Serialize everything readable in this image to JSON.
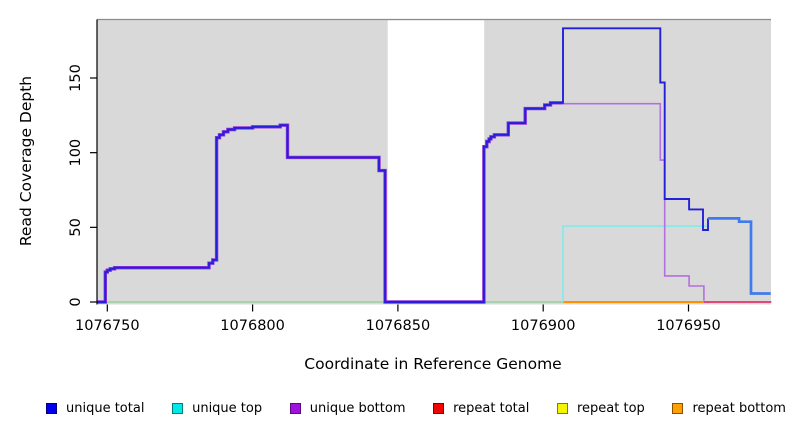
{
  "chart_data": {
    "type": "line",
    "title": "",
    "xlabel": "Coordinate in Reference Genome",
    "ylabel": "Read Coverage Depth",
    "x_ticks": [
      1076750,
      1076800,
      1076850,
      1076900,
      1076950
    ],
    "y_ticks": [
      0,
      50,
      100,
      150
    ],
    "xlim": [
      1076746.5,
      1076978.5
    ],
    "ylim": [
      0,
      190
    ],
    "grid": false,
    "panel_bg": "#d9d9d9",
    "panel_top_border": "#8c8c8c",
    "axis_color": "#000000",
    "masked_region": {
      "x_start": 1076846.5,
      "x_end": 1076879.7,
      "color": "#ffffff"
    },
    "draw": [
      {
        "name": "baseline-green",
        "color": "#96d0a0",
        "width": 1.6,
        "points": [
          [
            1076746.5,
            0
          ],
          [
            1076906.8,
            0
          ]
        ]
      },
      {
        "name": "repeat-bottom",
        "color": "#ff9100",
        "width": 2,
        "points": [
          [
            1076906.8,
            0
          ],
          [
            1076955.3,
            0
          ]
        ]
      },
      {
        "name": "repeat-total",
        "color": "#e04878",
        "width": 2,
        "points": [
          [
            1076955.3,
            0
          ],
          [
            1076978.5,
            0
          ]
        ]
      },
      {
        "name": "unique-top",
        "color": "#84e9e9",
        "width": 1.6,
        "points": [
          [
            1076906.8,
            0
          ],
          [
            1076906.8,
            50.8
          ],
          [
            1076956.7,
            50.8
          ],
          [
            1076956.7,
            56
          ],
          [
            1076967.4,
            56
          ],
          [
            1076967.4,
            53.8
          ],
          [
            1076971.5,
            53.8
          ],
          [
            1076971.5,
            5.7
          ],
          [
            1076978.3,
            5.7
          ]
        ]
      },
      {
        "name": "unique-bottom",
        "color": "#b46fe0",
        "width": 1.6,
        "points": [
          [
            1076906.8,
            132.8
          ],
          [
            1076940.3,
            132.8
          ],
          [
            1076940.3,
            95
          ],
          [
            1076941.8,
            95
          ],
          [
            1076941.8,
            17.5
          ],
          [
            1076950.2,
            17.5
          ],
          [
            1076950.2,
            10.7
          ],
          [
            1076955.3,
            10.7
          ],
          [
            1076955.3,
            0.8
          ]
        ]
      },
      {
        "name": "unique-bottom-underlay",
        "color": "#8f35dd",
        "width": 3.4,
        "points": [
          [
            1076746.5,
            0
          ],
          [
            1076749.3,
            0
          ],
          [
            1076749.3,
            20
          ],
          [
            1076750,
            20
          ],
          [
            1076750,
            21.3
          ],
          [
            1076751,
            21.3
          ],
          [
            1076751,
            22.2
          ],
          [
            1076752.5,
            22.2
          ],
          [
            1076752.5,
            23
          ],
          [
            1076785,
            23
          ],
          [
            1076785,
            26
          ],
          [
            1076786.3,
            26
          ],
          [
            1076786.3,
            28.2
          ],
          [
            1076787.6,
            28.2
          ],
          [
            1076787.6,
            110
          ],
          [
            1076788.6,
            110
          ],
          [
            1076788.6,
            112
          ],
          [
            1076790,
            112
          ],
          [
            1076790,
            114
          ],
          [
            1076791.5,
            114
          ],
          [
            1076791.5,
            115.5
          ],
          [
            1076793.8,
            115.5
          ],
          [
            1076793.8,
            116.6
          ],
          [
            1076800,
            116.6
          ],
          [
            1076800,
            117.3
          ],
          [
            1076809.5,
            117.3
          ],
          [
            1076809.5,
            118.4
          ],
          [
            1076812,
            118.4
          ],
          [
            1076812,
            96.8
          ],
          [
            1076843.5,
            96.8
          ],
          [
            1076843.5,
            88
          ],
          [
            1076845.6,
            88
          ],
          [
            1076845.6,
            0
          ],
          [
            1076879.6,
            0
          ],
          [
            1076879.6,
            104
          ],
          [
            1076880.6,
            104
          ],
          [
            1076880.6,
            107.5
          ],
          [
            1076881.4,
            107.5
          ],
          [
            1076881.4,
            109.2
          ],
          [
            1076882,
            109.2
          ],
          [
            1076882,
            110.6
          ],
          [
            1076883.2,
            110.6
          ],
          [
            1076883.2,
            112
          ],
          [
            1076888,
            112
          ],
          [
            1076888,
            119.8
          ],
          [
            1076893.8,
            119.8
          ],
          [
            1076893.8,
            129.5
          ],
          [
            1076900.5,
            129.5
          ],
          [
            1076900.5,
            132
          ],
          [
            1076902.5,
            132
          ],
          [
            1076902.5,
            133.4
          ],
          [
            1076906.8,
            133.4
          ]
        ]
      },
      {
        "name": "unique-total",
        "color": "#2420d8",
        "width": 1.9,
        "points": [
          [
            1076746.5,
            0
          ],
          [
            1076749.3,
            0
          ],
          [
            1076749.3,
            20
          ],
          [
            1076750,
            20
          ],
          [
            1076750,
            21.3
          ],
          [
            1076751,
            21.3
          ],
          [
            1076751,
            22.2
          ],
          [
            1076752.5,
            22.2
          ],
          [
            1076752.5,
            23
          ],
          [
            1076785,
            23
          ],
          [
            1076785,
            26
          ],
          [
            1076786.3,
            26
          ],
          [
            1076786.3,
            28.2
          ],
          [
            1076787.6,
            28.2
          ],
          [
            1076787.6,
            110
          ],
          [
            1076788.6,
            110
          ],
          [
            1076788.6,
            112
          ],
          [
            1076790,
            112
          ],
          [
            1076790,
            114
          ],
          [
            1076791.5,
            114
          ],
          [
            1076791.5,
            115.5
          ],
          [
            1076793.8,
            115.5
          ],
          [
            1076793.8,
            116.6
          ],
          [
            1076800,
            116.6
          ],
          [
            1076800,
            117.3
          ],
          [
            1076809.5,
            117.3
          ],
          [
            1076809.5,
            118.4
          ],
          [
            1076812,
            118.4
          ],
          [
            1076812,
            96.8
          ],
          [
            1076843.5,
            96.8
          ],
          [
            1076843.5,
            88
          ],
          [
            1076845.6,
            88
          ],
          [
            1076845.6,
            0
          ],
          [
            1076879.6,
            0
          ],
          [
            1076879.6,
            104
          ],
          [
            1076880.6,
            104
          ],
          [
            1076880.6,
            107.5
          ],
          [
            1076881.4,
            107.5
          ],
          [
            1076881.4,
            109.2
          ],
          [
            1076882,
            109.2
          ],
          [
            1076882,
            110.6
          ],
          [
            1076883.2,
            110.6
          ],
          [
            1076883.2,
            112
          ],
          [
            1076888,
            112
          ],
          [
            1076888,
            119.8
          ],
          [
            1076893.8,
            119.8
          ],
          [
            1076893.8,
            129.5
          ],
          [
            1076900.5,
            129.5
          ],
          [
            1076900.5,
            132
          ],
          [
            1076902.5,
            132
          ],
          [
            1076902.5,
            133.4
          ],
          [
            1076906.8,
            133.4
          ],
          [
            1076906.8,
            183.3
          ],
          [
            1076940.3,
            183.3
          ],
          [
            1076940.3,
            147
          ],
          [
            1076941.8,
            147
          ],
          [
            1076941.8,
            69
          ],
          [
            1076950.2,
            69
          ],
          [
            1076950.2,
            62
          ],
          [
            1076955,
            62
          ],
          [
            1076955,
            48.2
          ],
          [
            1076956.7,
            48.2
          ],
          [
            1076956.7,
            56
          ]
        ]
      },
      {
        "name": "unique-total-top-overlap",
        "color": "#3f7bea",
        "width": 2.7,
        "points": [
          [
            1076956.7,
            56
          ],
          [
            1076967.4,
            56
          ],
          [
            1076967.4,
            53.8
          ],
          [
            1076971.5,
            53.8
          ],
          [
            1076971.5,
            5.7
          ],
          [
            1076978.3,
            5.7
          ]
        ]
      }
    ]
  },
  "legend": {
    "items": [
      {
        "label": "unique total",
        "color": "#0000f0",
        "border": "#00007a"
      },
      {
        "label": "unique top",
        "color": "#00e8e8",
        "border": "#007d7d"
      },
      {
        "label": "unique bottom",
        "color": "#a012e0",
        "border": "#5c0a80"
      },
      {
        "label": "repeat total",
        "color": "#f00505",
        "border": "#7d0000"
      },
      {
        "label": "repeat top",
        "color": "#f5f500",
        "border": "#7d7d00"
      },
      {
        "label": "repeat bottom",
        "color": "#ffa000",
        "border": "#8a5200"
      }
    ]
  }
}
